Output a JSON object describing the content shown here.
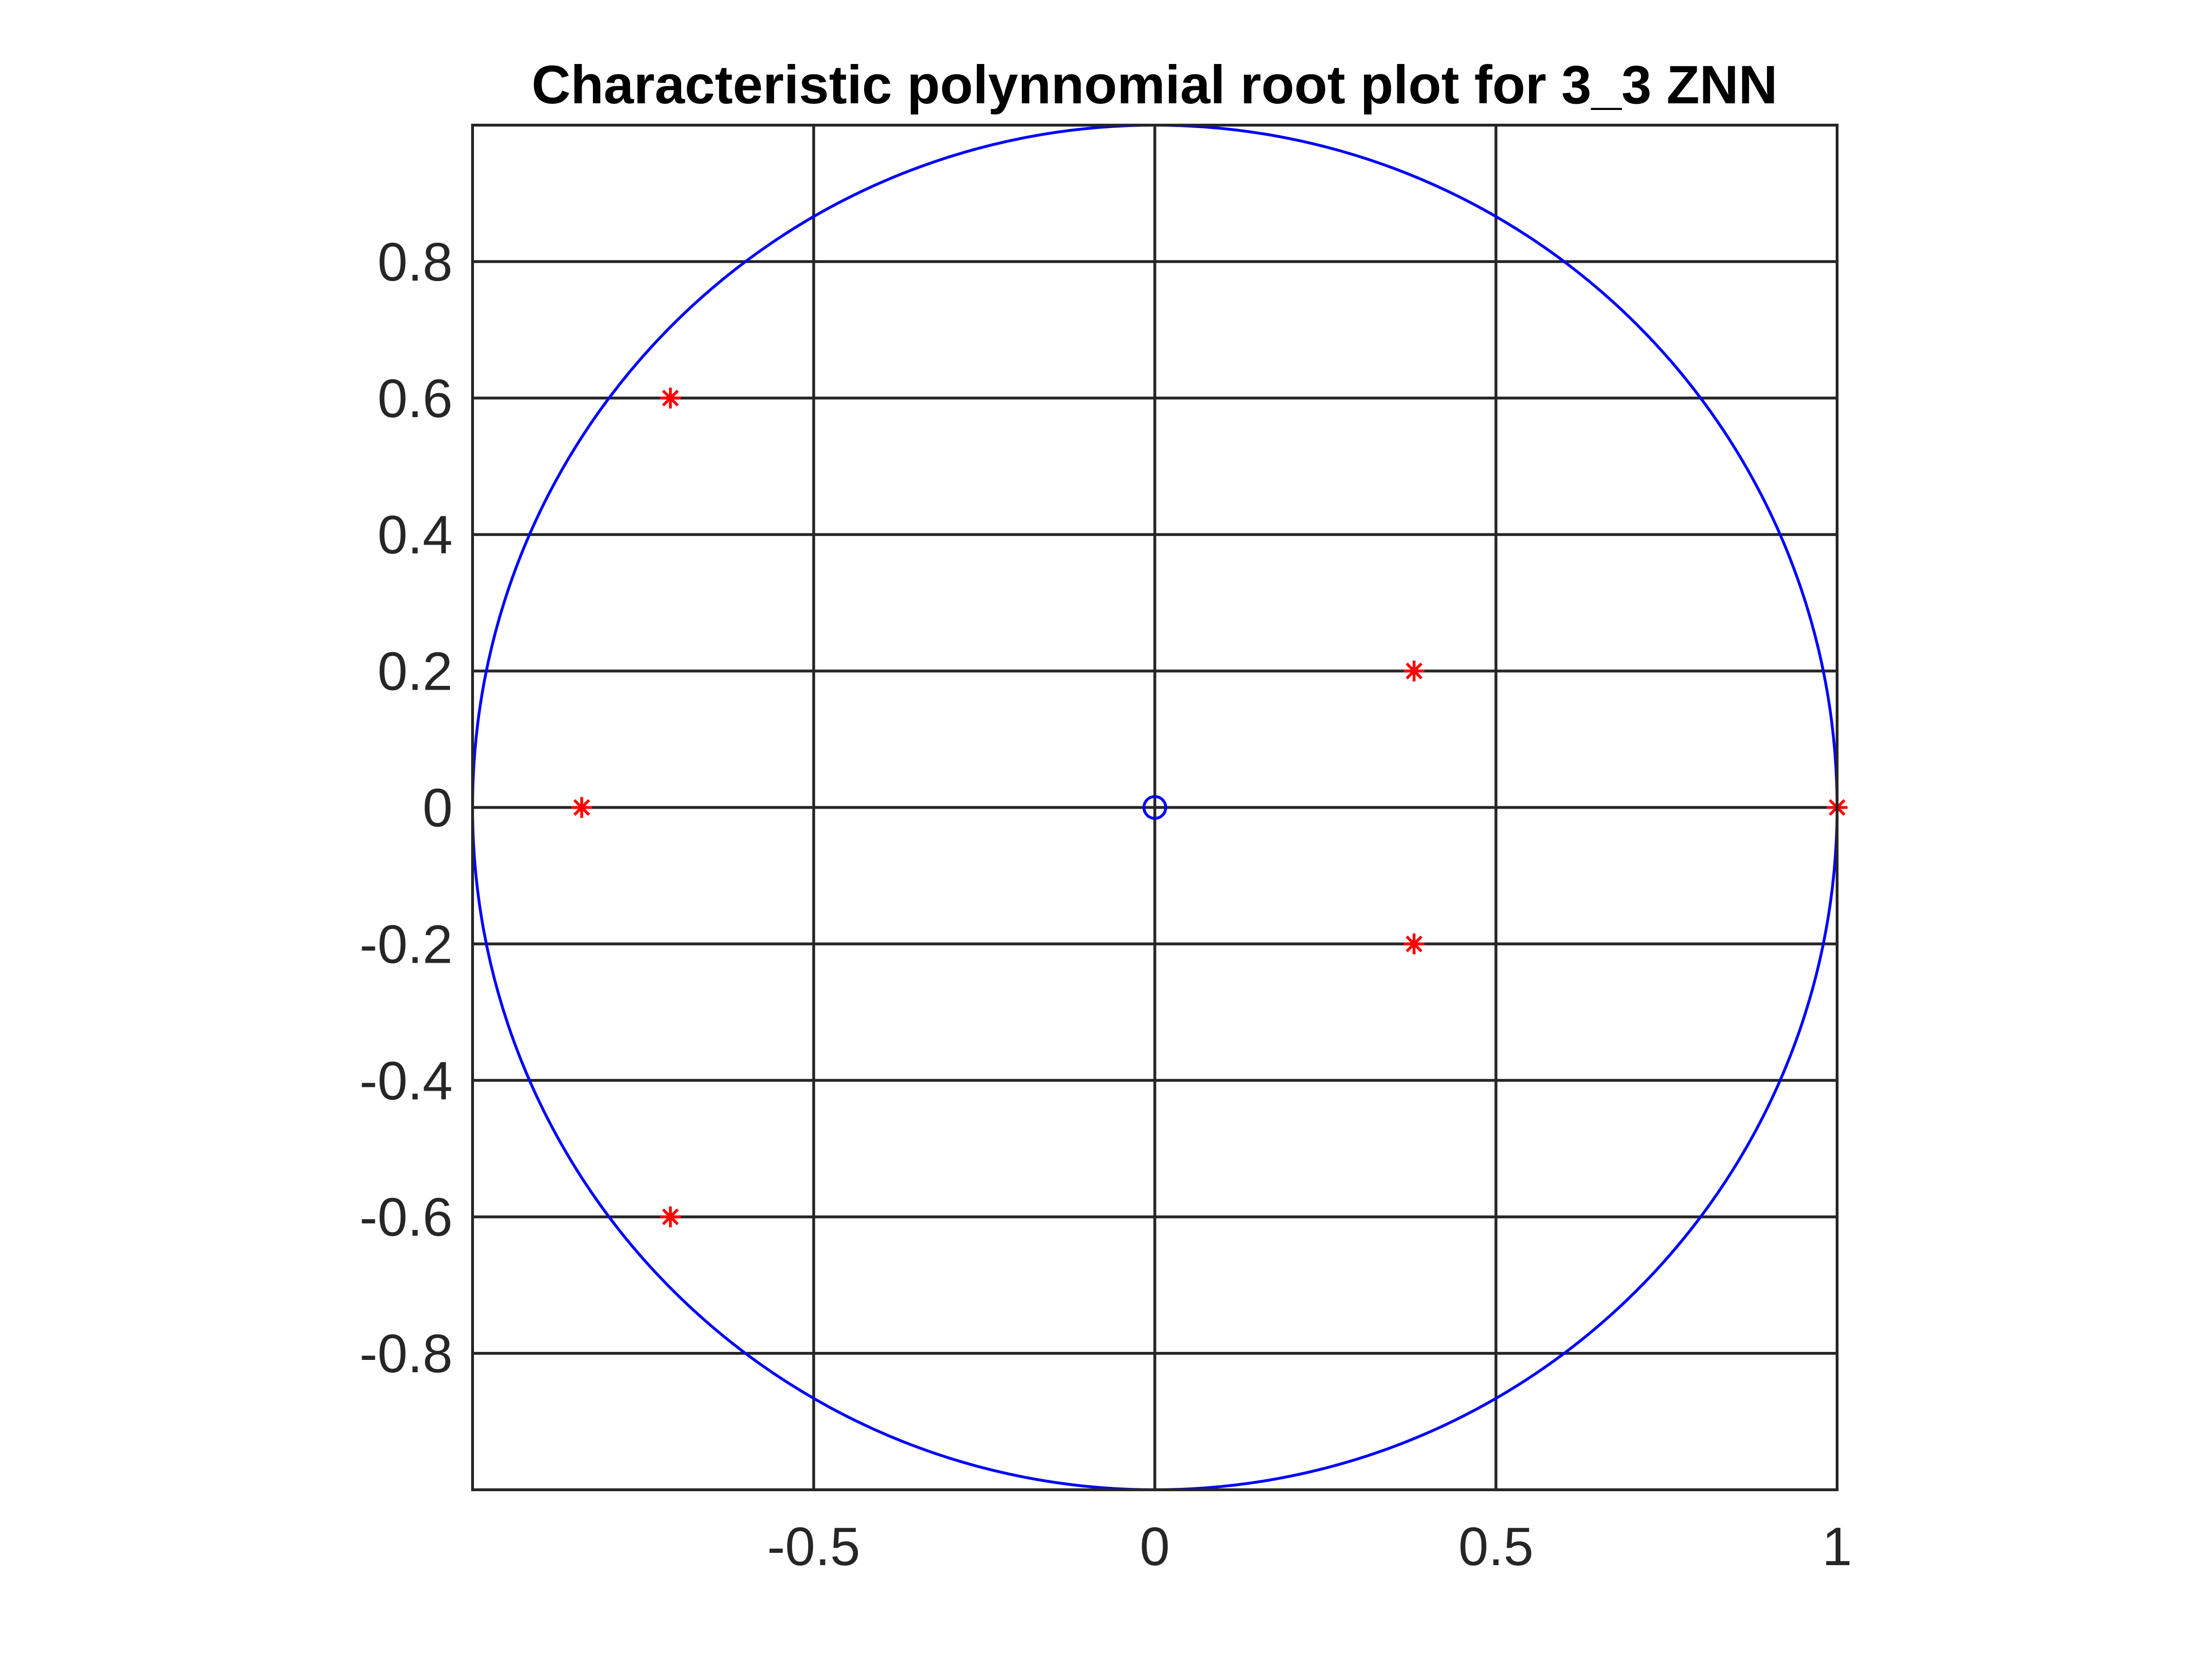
{
  "chart_data": {
    "type": "scatter",
    "title": "Characteristic polynnomial root plot for 3_3 ZNN",
    "xlabel": "",
    "ylabel": "",
    "xlim": [
      -1,
      1
    ],
    "ylim": [
      -1,
      1
    ],
    "grid": true,
    "aspect": "equal",
    "xticks": [
      -0.5,
      0,
      0.5,
      1
    ],
    "xtick_labels": [
      "-0.5",
      "0",
      "0.5",
      "1"
    ],
    "yticks": [
      0.8,
      0.6,
      0.4,
      0.2,
      0,
      -0.2,
      -0.4,
      -0.6,
      -0.8
    ],
    "ytick_labels": [
      "0.8",
      "0.6",
      "0.4",
      "0.2",
      "0",
      "-0.2",
      "-0.4",
      "-0.6",
      "-0.8"
    ],
    "unit_circle": {
      "center": [
        0,
        0
      ],
      "radius": 1,
      "color": "#0000ff"
    },
    "zeros": {
      "marker": "circle",
      "color": "#0000ff",
      "points": [
        {
          "x": 0,
          "y": 0
        }
      ]
    },
    "poles": {
      "marker": "star",
      "color": "#ff0000",
      "points": [
        {
          "x": 1.0,
          "y": 0.0
        },
        {
          "x": 0.38,
          "y": 0.2
        },
        {
          "x": 0.38,
          "y": -0.2
        },
        {
          "x": -0.71,
          "y": 0.6
        },
        {
          "x": -0.71,
          "y": -0.6
        },
        {
          "x": -0.84,
          "y": 0.0
        }
      ]
    }
  }
}
